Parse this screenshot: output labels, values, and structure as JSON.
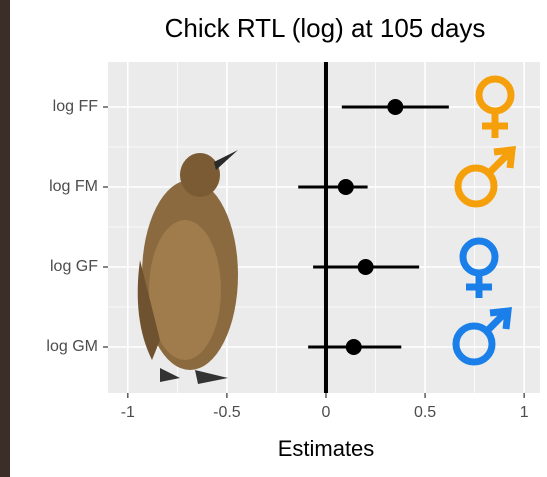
{
  "chart_data": {
    "type": "forest",
    "title": "Chick RTL (log) at 105 days",
    "x_label": "Estimates",
    "categories": [
      "log FF",
      "log FM",
      "log GF",
      "log GM"
    ],
    "values": [
      0.35,
      0.1,
      0.2,
      0.14
    ],
    "lower": [
      0.08,
      -0.14,
      -0.065,
      -0.09
    ],
    "upper": [
      0.62,
      0.21,
      0.47,
      0.38
    ],
    "color": "#000000",
    "xlim": [
      -1.1,
      1.08
    ],
    "xticks": [
      -1,
      -0.5,
      0,
      0.5,
      1
    ],
    "vline": 0,
    "grid": true
  }
}
